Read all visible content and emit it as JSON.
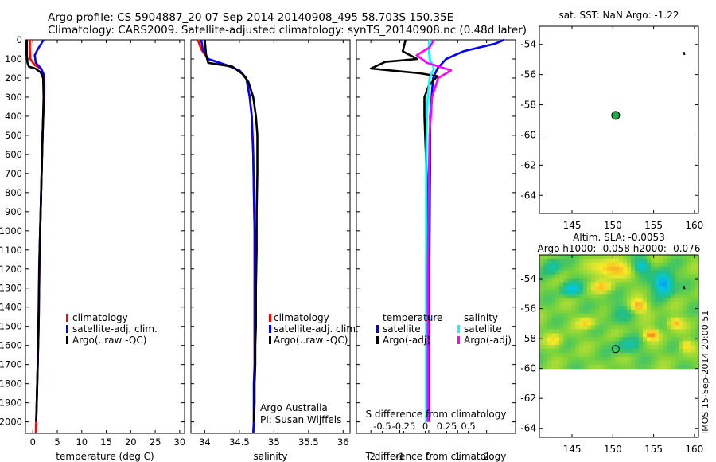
{
  "header": {
    "title_line1": "Argo profile: CS 5904887_20 07-Sep-2014 20140908_495 58.703S 150.35E",
    "title_line2": "Climatology: CARS2009. Satellite-adjusted climatology: synTS_20140908.nc (0.48d later)"
  },
  "colors": {
    "climatology": "#ff0000",
    "satellite": "#0000ff",
    "argo": "#000000",
    "salinity_satellite": "#00ffff",
    "salinity_argo": "#ff00ff",
    "argo_marker": "#22aa44"
  },
  "watermark": "IMOS 15-Sep-2014 20:00:51",
  "chart_data": [
    {
      "type": "line",
      "id": "temperature",
      "xlabel": "temperature (deg C)",
      "ylabel": "",
      "xlim": [
        -1.5,
        31
      ],
      "ylim": [
        0,
        2060
      ],
      "xticks": [
        0,
        5,
        10,
        15,
        20,
        25,
        30
      ],
      "xtick_labels": [
        "0",
        "5",
        "10",
        "15",
        "20",
        "25",
        "30"
      ],
      "yticks": [
        0,
        100,
        200,
        300,
        400,
        500,
        600,
        700,
        800,
        900,
        1000,
        1100,
        1200,
        1300,
        1400,
        1500,
        1600,
        1700,
        1800,
        1900,
        2000
      ],
      "ytick_labels": [
        "0",
        "100",
        "200",
        "300",
        "400",
        "500",
        "600",
        "700",
        "800",
        "900",
        "1000",
        "1100",
        "1200",
        "1300",
        "1400",
        "1500",
        "1600",
        "1700",
        "1800",
        "1900",
        "2000"
      ],
      "legend": [
        "climatology",
        "satellite-adj. clim.",
        "Argo(..raw -QC)"
      ],
      "series": [
        {
          "name": "climatology",
          "color": "#ff0000",
          "x": [
            -0.6,
            -0.6,
            -0.5,
            0.3,
            1.6,
            2.2,
            2.3,
            2.2,
            2.0,
            1.8,
            1.6,
            1.4,
            1.3,
            1.2,
            1.1,
            1.0,
            0.9,
            0.8,
            0.7,
            0.6
          ],
          "y": [
            0,
            50,
            100,
            130,
            150,
            180,
            250,
            350,
            500,
            700,
            900,
            1100,
            1300,
            1500,
            1600,
            1700,
            1800,
            1900,
            2000,
            2060
          ]
        },
        {
          "name": "satellite-adj. clim.",
          "color": "#0000ff",
          "x": [
            2.2,
            1.0,
            0.4,
            0.6,
            1.7,
            2.2,
            2.3,
            2.2,
            2.0,
            1.8,
            1.6,
            1.4,
            1.3,
            1.2,
            1.1,
            1.0,
            0.9,
            0.8,
            0.7
          ],
          "y": [
            0,
            50,
            80,
            120,
            150,
            180,
            250,
            350,
            500,
            700,
            900,
            1100,
            1300,
            1500,
            1600,
            1700,
            1800,
            1900,
            2000
          ]
        },
        {
          "name": "Argo(..raw -QC)",
          "color": "#000000",
          "x": [
            -1.2,
            -1.2,
            -1.1,
            -0.8,
            0.5,
            1.6,
            2.1,
            2.2,
            2.1,
            1.9,
            1.7,
            1.5,
            1.3,
            1.2,
            1.1,
            1.0,
            0.9,
            0.8,
            0.7
          ],
          "y": [
            0,
            80,
            120,
            140,
            150,
            170,
            200,
            300,
            400,
            600,
            800,
            1000,
            1200,
            1400,
            1550,
            1700,
            1800,
            1900,
            2000
          ]
        }
      ]
    },
    {
      "type": "line",
      "id": "salinity",
      "xlabel": "salinity",
      "ylabel": "",
      "xlim": [
        33.8,
        36.1
      ],
      "ylim": [
        0,
        2060
      ],
      "xticks": [
        34,
        34.5,
        35,
        35.5,
        36
      ],
      "xtick_labels": [
        "34",
        "34.5",
        "35",
        "35.5",
        "36"
      ],
      "legend": [
        "climatology",
        "satellite-adj. clim.",
        "Argo(..raw -QC)"
      ],
      "annotation": [
        "Argo Australia",
        "PI: Susan Wijffels"
      ],
      "series": [
        {
          "name": "climatology",
          "color": "#ff0000",
          "x": [
            33.9,
            33.95,
            34.05,
            34.3,
            34.5,
            34.6,
            34.65,
            34.68,
            34.7,
            34.71,
            34.72,
            34.72,
            34.72,
            34.72,
            34.72,
            34.71,
            34.71,
            34.71,
            34.7
          ],
          "y": [
            0,
            50,
            100,
            130,
            160,
            200,
            300,
            400,
            600,
            800,
            1000,
            1200,
            1400,
            1600,
            1700,
            1800,
            1900,
            2000,
            2060
          ]
        },
        {
          "name": "satellite-adj. clim.",
          "color": "#0000ff",
          "x": [
            33.95,
            33.97,
            34.05,
            34.3,
            34.5,
            34.6,
            34.65,
            34.68,
            34.7,
            34.71,
            34.72,
            34.72,
            34.72,
            34.72,
            34.72,
            34.71,
            34.71,
            34.71,
            34.7
          ],
          "y": [
            0,
            50,
            100,
            130,
            160,
            200,
            300,
            400,
            600,
            800,
            1000,
            1200,
            1400,
            1600,
            1700,
            1800,
            1900,
            2000,
            2060
          ]
        },
        {
          "name": "Argo(..raw -QC)",
          "color": "#000000",
          "x": [
            34.0,
            34.02,
            34.05,
            34.4,
            34.55,
            34.63,
            34.7,
            34.74,
            34.76,
            34.76,
            34.75,
            34.75,
            34.74,
            34.74,
            34.73,
            34.73,
            34.72,
            34.72,
            34.71
          ],
          "y": [
            0,
            80,
            120,
            140,
            180,
            220,
            300,
            400,
            500,
            700,
            900,
            1100,
            1300,
            1500,
            1600,
            1700,
            1800,
            1900,
            2000
          ]
        }
      ]
    },
    {
      "type": "line",
      "id": "differences",
      "xlabel": "T difference from climatology",
      "xlabel_top": "S difference from climatology",
      "xlim": [
        -2.5,
        3
      ],
      "ylim": [
        0,
        2060
      ],
      "xticks": [
        -2,
        -1,
        0,
        1,
        2
      ],
      "xtick_labels": [
        "-2",
        "-1",
        "0",
        "1",
        "2"
      ],
      "sticks": [
        -0.5,
        -0.25,
        0,
        0.25,
        0.5
      ],
      "stick_labels": [
        "-0.5",
        "-0.25",
        "0",
        "0.25",
        "0.5"
      ],
      "slim": [
        -0.8,
        1.05
      ],
      "legend_headers": [
        "temperature",
        "salinity"
      ],
      "legend": [
        "satellite",
        "Argo(-adj)",
        "satellite",
        "Argo(-adj)"
      ],
      "series": [
        {
          "name": "temperature satellite",
          "color": "#0000ff",
          "axis": "T",
          "x": [
            2.6,
            2.3,
            1.2,
            0.6,
            0.3,
            0.15,
            0.1,
            0.05,
            0.05,
            0.04,
            0.03,
            0.02,
            0.02,
            0.02,
            0.02,
            0.02
          ],
          "y": [
            0,
            20,
            60,
            100,
            150,
            200,
            300,
            400,
            600,
            800,
            1000,
            1200,
            1400,
            1600,
            1800,
            2000
          ]
        },
        {
          "name": "temperature Argo(-adj)",
          "color": "#000000",
          "axis": "T",
          "x": [
            -0.8,
            -0.9,
            -0.4,
            -1.5,
            -2.0,
            -0.3,
            0.3,
            0.0,
            -0.15,
            -0.15,
            -0.1,
            -0.05,
            -0.05,
            -0.05,
            -0.05,
            -0.05,
            -0.05
          ],
          "y": [
            0,
            60,
            100,
            115,
            150,
            175,
            190,
            240,
            300,
            400,
            600,
            800,
            1000,
            1200,
            1500,
            1800,
            2000
          ]
        },
        {
          "name": "salinity satellite",
          "color": "#00ffff",
          "axis": "S",
          "x": [
            0.05,
            0.04,
            0.05,
            0.1,
            0.05,
            0.03,
            0.02,
            0.01,
            0.01,
            0.01,
            0.01,
            0.01,
            0.01,
            0.01
          ],
          "y": [
            0,
            50,
            100,
            150,
            200,
            300,
            400,
            600,
            800,
            1000,
            1200,
            1400,
            1600,
            2000
          ]
        },
        {
          "name": "salinity Argo(-adj)",
          "color": "#ff00ff",
          "axis": "S",
          "x": [
            0.1,
            0.05,
            -0.1,
            0.02,
            0.3,
            0.15,
            0.08,
            0.05,
            0.04,
            0.03,
            0.03,
            0.03
          ],
          "y": [
            0,
            40,
            80,
            120,
            160,
            200,
            300,
            500,
            800,
            1200,
            1600,
            2000
          ]
        }
      ]
    },
    {
      "type": "scatter",
      "id": "sst_map",
      "title": "sat. SST: NaN Argo: -1.22",
      "xlim": [
        141,
        160.5
      ],
      "ylim": [
        -65.2,
        -52.8
      ],
      "xticks": [
        145,
        150,
        155,
        160
      ],
      "xtick_labels": [
        "145",
        "150",
        "155",
        "160"
      ],
      "yticks": [
        -54,
        -56,
        -58,
        -60,
        -62,
        -64
      ],
      "ytick_labels": [
        "-54",
        "-56",
        "-58",
        "-60",
        "-62",
        "-64"
      ],
      "points": [
        {
          "lon": 150.35,
          "lat": -58.703
        }
      ]
    },
    {
      "type": "heatmap",
      "id": "sla_map",
      "title_line1": "Altim. SLA: -0.0053",
      "title_line2": "Argo h1000: -0.058 h2000: -0.076",
      "xlim": [
        141,
        160.5
      ],
      "ylim": [
        -64.6,
        -52.4
      ],
      "xticks": [
        145,
        150,
        155,
        160
      ],
      "xtick_labels": [
        "145",
        "150",
        "155",
        "160"
      ],
      "yticks": [
        -54,
        -56,
        -58,
        -60,
        -62,
        -64
      ],
      "ytick_labels": [
        "-54",
        "-56",
        "-58",
        "-60",
        "-62",
        "-64"
      ],
      "data_lat_range": [
        -60,
        -52.4
      ],
      "points": [
        {
          "lon": 150.35,
          "lat": -58.703
        }
      ]
    }
  ]
}
